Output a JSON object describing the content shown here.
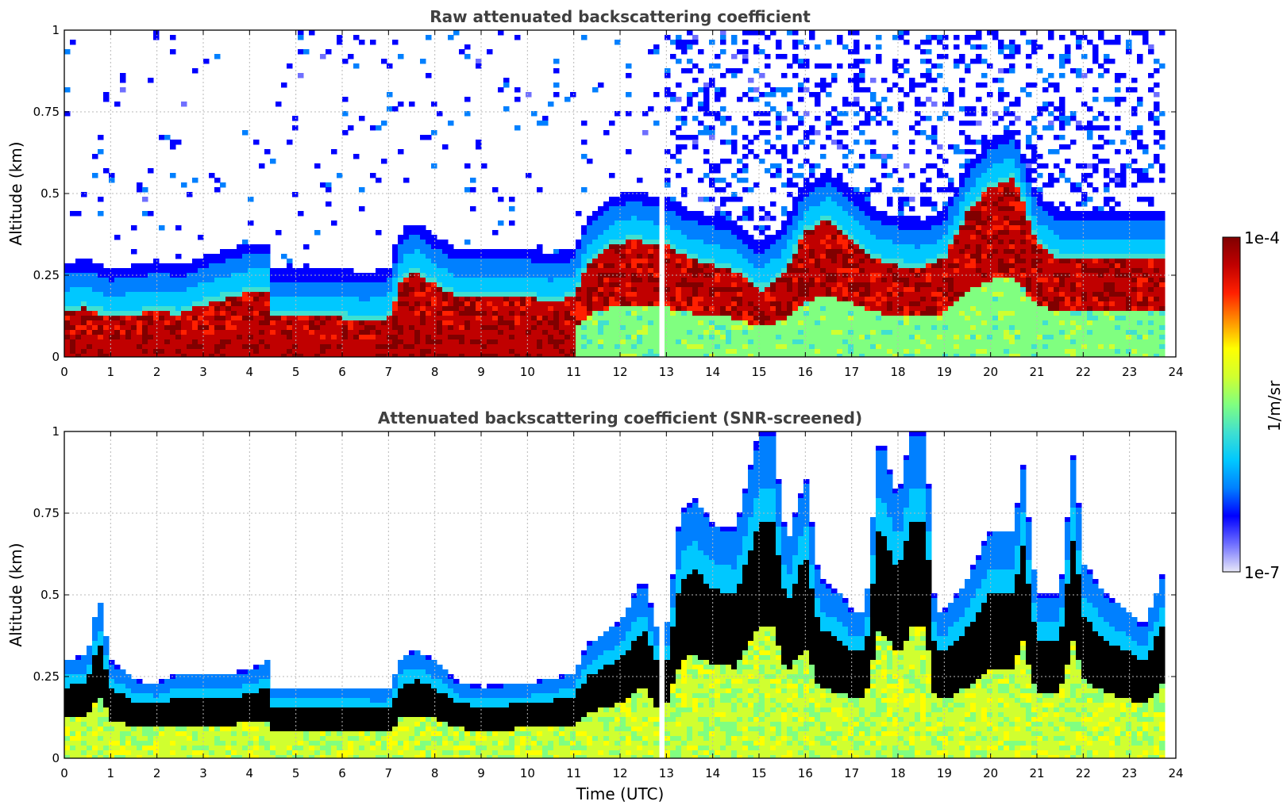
{
  "chart_data": [
    {
      "type": "heatmap",
      "title": "Raw attenuated backscattering coefficient",
      "xlabel": "",
      "ylabel": "Altitude (km)",
      "xlim": [
        0,
        24
      ],
      "ylim": [
        0,
        1
      ],
      "x_ticks": [
        "0",
        "1",
        "2",
        "3",
        "4",
        "5",
        "6",
        "7",
        "8",
        "9",
        "10",
        "11",
        "12",
        "13",
        "14",
        "15",
        "16",
        "17",
        "18",
        "19",
        "20",
        "21",
        "22",
        "23",
        "24"
      ],
      "y_ticks": [
        "0",
        "0.25",
        "0.5",
        "0.75",
        "1"
      ],
      "grid": true,
      "screened": false,
      "layer_top_km": [
        [
          0,
          0.14
        ],
        [
          0.5,
          0.15
        ],
        [
          1,
          0.12
        ],
        [
          1.5,
          0.13
        ],
        [
          2,
          0.14
        ],
        [
          2.5,
          0.13
        ],
        [
          3,
          0.16
        ],
        [
          3.5,
          0.18
        ],
        [
          4,
          0.2
        ],
        [
          4.4,
          0.2
        ],
        [
          4.5,
          0.12
        ],
        [
          5,
          0.12
        ],
        [
          5.5,
          0.12
        ],
        [
          6,
          0.12
        ],
        [
          6.5,
          0.11
        ],
        [
          7,
          0.12
        ],
        [
          7.3,
          0.24
        ],
        [
          7.6,
          0.26
        ],
        [
          8,
          0.22
        ],
        [
          8.5,
          0.18
        ],
        [
          9,
          0.18
        ],
        [
          9.5,
          0.18
        ],
        [
          10,
          0.18
        ],
        [
          10.5,
          0.17
        ],
        [
          11,
          0.18
        ],
        [
          11.3,
          0.28
        ],
        [
          11.8,
          0.34
        ],
        [
          12.3,
          0.36
        ],
        [
          12.8,
          0.34
        ],
        [
          13,
          0.34
        ],
        [
          13.5,
          0.3
        ],
        [
          14,
          0.28
        ],
        [
          14.5,
          0.26
        ],
        [
          15,
          0.2
        ],
        [
          15.5,
          0.25
        ],
        [
          16,
          0.38
        ],
        [
          16.5,
          0.42
        ],
        [
          17,
          0.36
        ],
        [
          17.5,
          0.3
        ],
        [
          18,
          0.28
        ],
        [
          18.5,
          0.27
        ],
        [
          19,
          0.3
        ],
        [
          19.5,
          0.44
        ],
        [
          20,
          0.52
        ],
        [
          20.5,
          0.55
        ],
        [
          21,
          0.35
        ],
        [
          21.5,
          0.3
        ],
        [
          22,
          0.3
        ],
        [
          22.5,
          0.3
        ],
        [
          23,
          0.3
        ],
        [
          23.8,
          0.3
        ]
      ]
    },
    {
      "type": "heatmap",
      "title": "Attenuated backscattering coefficient (SNR-screened)",
      "xlabel": "Time (UTC)",
      "ylabel": "Altitude (km)",
      "xlim": [
        0,
        24
      ],
      "ylim": [
        0,
        1
      ],
      "x_ticks": [
        "0",
        "1",
        "2",
        "3",
        "4",
        "5",
        "6",
        "7",
        "8",
        "9",
        "10",
        "11",
        "12",
        "13",
        "14",
        "15",
        "16",
        "17",
        "18",
        "19",
        "20",
        "21",
        "22",
        "23",
        "24"
      ],
      "y_ticks": [
        "0",
        "0.25",
        "0.5",
        "0.75",
        "1"
      ],
      "grid": true,
      "screened": true,
      "signal_top_km": [
        [
          0,
          0.3
        ],
        [
          0.5,
          0.32
        ],
        [
          0.75,
          0.5
        ],
        [
          1,
          0.3
        ],
        [
          1.5,
          0.24
        ],
        [
          2,
          0.23
        ],
        [
          2.5,
          0.26
        ],
        [
          3,
          0.26
        ],
        [
          3.5,
          0.26
        ],
        [
          4,
          0.27
        ],
        [
          4.4,
          0.3
        ],
        [
          4.5,
          0.22
        ],
        [
          5,
          0.22
        ],
        [
          6,
          0.22
        ],
        [
          7,
          0.21
        ],
        [
          7.3,
          0.32
        ],
        [
          7.6,
          0.33
        ],
        [
          8,
          0.3
        ],
        [
          8.5,
          0.23
        ],
        [
          9,
          0.22
        ],
        [
          10,
          0.23
        ],
        [
          11,
          0.26
        ],
        [
          11.3,
          0.35
        ],
        [
          12,
          0.42
        ],
        [
          12.5,
          0.55
        ],
        [
          12.8,
          0.4
        ],
        [
          13,
          0.4
        ],
        [
          13.3,
          0.75
        ],
        [
          13.6,
          0.8
        ],
        [
          14,
          0.72
        ],
        [
          14.5,
          0.7
        ],
        [
          15,
          1.0
        ],
        [
          15.3,
          1.0
        ],
        [
          15.6,
          0.65
        ],
        [
          16,
          0.87
        ],
        [
          16.3,
          0.55
        ],
        [
          16.8,
          0.5
        ],
        [
          17,
          0.45
        ],
        [
          17.3,
          0.45
        ],
        [
          17.6,
          1.0
        ],
        [
          18,
          0.8
        ],
        [
          18.3,
          1.0
        ],
        [
          18.6,
          1.0
        ],
        [
          18.8,
          0.45
        ],
        [
          19,
          0.45
        ],
        [
          19.5,
          0.55
        ],
        [
          20,
          0.7
        ],
        [
          20.5,
          0.7
        ],
        [
          20.7,
          0.9
        ],
        [
          21,
          0.5
        ],
        [
          21.5,
          0.5
        ],
        [
          21.8,
          0.95
        ],
        [
          22,
          0.6
        ],
        [
          22.5,
          0.5
        ],
        [
          23,
          0.45
        ],
        [
          23.3,
          0.4
        ],
        [
          23.8,
          0.6
        ]
      ]
    }
  ],
  "colorbar": {
    "label": "1/m/sr",
    "max_label": "1e-4",
    "min_label": "1e-7",
    "colormap": "jet",
    "colors": [
      "#e8e8f8",
      "#6f6fff",
      "#0000ff",
      "#0080ff",
      "#00c8ff",
      "#40e0d0",
      "#80ff80",
      "#d0ff30",
      "#ffff00",
      "#ff9000",
      "#ff2000",
      "#c00000",
      "#800000"
    ]
  }
}
